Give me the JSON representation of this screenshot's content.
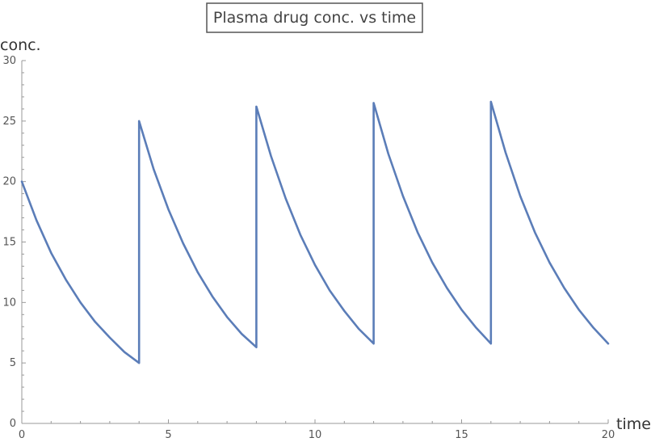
{
  "chart_data": {
    "type": "line",
    "title": "Plasma drug conc. vs time",
    "xlabel": "time",
    "ylabel": "conc.",
    "xlim": [
      0,
      20
    ],
    "ylim": [
      0,
      30
    ],
    "x_ticks": [
      "0",
      "5",
      "10",
      "15",
      "20"
    ],
    "y_ticks": [
      "0",
      "5",
      "10",
      "15",
      "20",
      "25",
      "30"
    ],
    "grid": false,
    "series_color": "#5b7db8",
    "series": [
      {
        "x": [
          0,
          0.5,
          1,
          1.5,
          2,
          2.5,
          3,
          3.5,
          4,
          4,
          4.5,
          5,
          5.5,
          6,
          6.5,
          7,
          7.5,
          8,
          8,
          8.5,
          9,
          9.5,
          10,
          10.5,
          11,
          11.5,
          12,
          12,
          12.5,
          13,
          13.5,
          14,
          14.5,
          15,
          15.5,
          16,
          16,
          16.5,
          17,
          17.5,
          18,
          18.5,
          19,
          19.5,
          20
        ],
        "y": [
          20,
          16.8,
          14.1,
          11.9,
          10.0,
          8.4,
          7.1,
          5.9,
          5.0,
          25.0,
          21.0,
          17.7,
          14.9,
          12.5,
          10.5,
          8.8,
          7.4,
          6.3,
          26.2,
          22.1,
          18.6,
          15.6,
          13.1,
          11.0,
          9.3,
          7.8,
          6.6,
          26.5,
          22.3,
          18.8,
          15.8,
          13.3,
          11.2,
          9.4,
          7.9,
          6.6,
          26.6,
          22.4,
          18.8,
          15.8,
          13.3,
          11.2,
          9.4,
          7.9,
          6.6
        ]
      }
    ]
  }
}
